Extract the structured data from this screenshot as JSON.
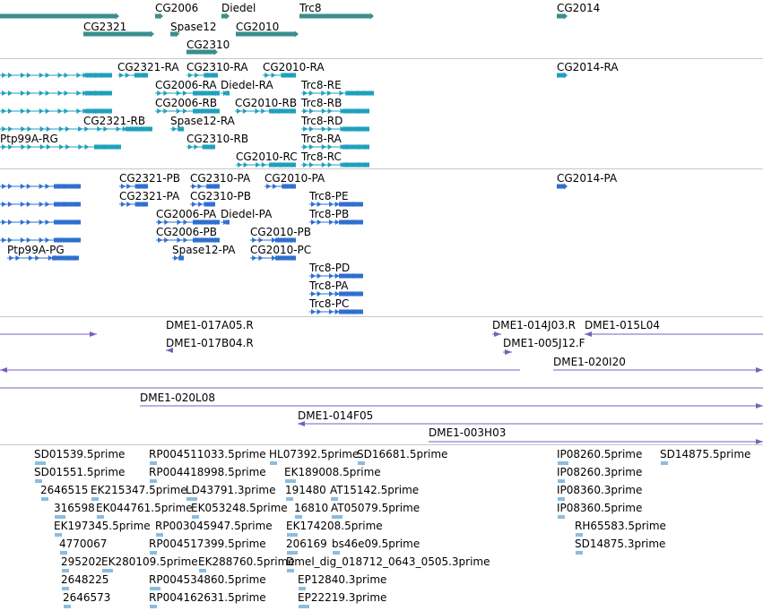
{
  "colors": {
    "genes": "#3a8e8e",
    "transcripts": "#1ea0bd",
    "proteins": "#2f6fd0",
    "clones": "#7b5fbd",
    "ests": "#8bbde0",
    "separator": "#c8c8c8"
  },
  "tracks": {
    "genes": [
      "CG2006",
      "Diedel",
      "Trc8",
      "CG2014",
      "CG2321",
      "Spase12",
      "CG2010",
      "CG2310"
    ],
    "transcripts": [
      "CG2321-RA",
      "CG2310-RA",
      "CG2010-RA",
      "CG2014-RA",
      "CG2006-RA",
      "Diedel-RA",
      "Trc8-RE",
      "CG2006-RB",
      "CG2010-RB",
      "Trc8-RB",
      "CG2321-RB",
      "Spase12-RA",
      "Trc8-RD",
      "Ptp99A-RG",
      "CG2310-RB",
      "Trc8-RA",
      "CG2010-RC",
      "Trc8-RC"
    ],
    "proteins": [
      "CG2321-PB",
      "CG2310-PA",
      "CG2010-PA",
      "CG2014-PA",
      "CG2321-PA",
      "CG2310-PB",
      "Trc8-PE",
      "CG2006-PA",
      "Diedel-PA",
      "Trc8-PB",
      "CG2006-PB",
      "CG2010-PB",
      "Ptp99A-PG",
      "Spase12-PA",
      "CG2010-PC",
      "Trc8-PD",
      "Trc8-PA",
      "Trc8-PC"
    ],
    "clones": [
      "DME1-017A05.R",
      "DME1-014J03.R",
      "DME1-015L04",
      "DME1-017B04.R",
      "DME1-005J12.F",
      "DME1-020I20",
      "DME1-020L08",
      "DME1-014F05",
      "DME1-003H03"
    ],
    "ests": [
      "SD01539.5prime",
      "RP004511033.5prime",
      "HL07392.5prime",
      "SD16681.5prime",
      "IP08260.5prime",
      "SD14875.5prime",
      "SD01551.5prime",
      "RP004418998.5prime",
      "EK189008.5prime",
      "IP08260.3prime",
      "2646515",
      "EK215347.5prime",
      "LD43791.3prime",
      "191480",
      "AT15142.5prime",
      "IP08360.3prime",
      "316598",
      "EK044761.5prime",
      "EK053248.5prime",
      "16810",
      "AT05079.5prime",
      "IP08360.5prime",
      "EK197345.5prime",
      "RP003045947.5prime",
      "EK174208.5prime",
      "RH65583.5prime",
      "4770067",
      "RP004517399.5prime",
      "206169",
      "bs46e09.5prime",
      "SD14875.3prime",
      "295202",
      "EK280109.5prime",
      "EK288760.5prime",
      "Dmel_dig_018712_0643_0505.3prime",
      "2648225",
      "RP004534860.5prime",
      "EP12840.3prime",
      "2646573",
      "RP004162631.5prime",
      "EP22219.3prime"
    ]
  }
}
